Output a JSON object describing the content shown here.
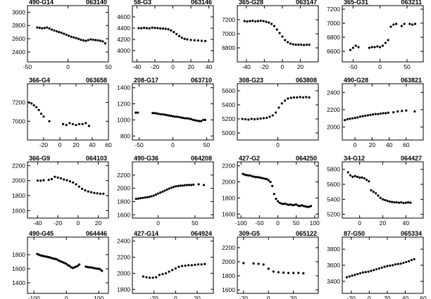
{
  "chart_data": [
    {
      "type": "scatter",
      "title_left": "490-G14",
      "title_right": "063140",
      "xlim": [
        -50,
        50
      ],
      "ylim": [
        2250,
        3100
      ],
      "xticks": [
        -50,
        0,
        50
      ],
      "yticks": [
        2400,
        2600,
        2800,
        3000
      ],
      "x": [
        -38,
        -35,
        -32,
        -29,
        -26,
        -23,
        -20,
        -17,
        -14,
        -11,
        -8,
        -5,
        -2,
        1,
        4,
        7,
        10,
        13,
        16,
        19,
        22,
        25,
        28,
        31,
        34,
        37,
        40,
        43,
        46
      ],
      "y": [
        2770,
        2765,
        2758,
        2762,
        2770,
        2755,
        2738,
        2725,
        2712,
        2700,
        2690,
        2675,
        2660,
        2645,
        2630,
        2620,
        2610,
        2598,
        2585,
        2575,
        2568,
        2580,
        2590,
        2585,
        2580,
        2575,
        2570,
        2560,
        2530
      ]
    },
    {
      "type": "scatter",
      "title_left": "58-G3",
      "title_right": "063146",
      "xlim": [
        -45,
        45
      ],
      "ylim": [
        3800,
        4800
      ],
      "xticks": [
        -40,
        -20,
        0,
        20,
        40
      ],
      "yticks": [
        4000,
        4200,
        4400,
        4600
      ],
      "x": [
        -38,
        -35,
        -32,
        -29,
        -26,
        -23,
        -20,
        -17,
        -14,
        -11,
        -8,
        -5,
        -2,
        1,
        4,
        7,
        10,
        13,
        16,
        20,
        24,
        28,
        32,
        36
      ],
      "y": [
        4400,
        4398,
        4405,
        4400,
        4395,
        4410,
        4405,
        4400,
        4395,
        4392,
        4388,
        4380,
        4360,
        4330,
        4295,
        4260,
        4230,
        4210,
        4200,
        4190,
        4185,
        4180,
        4175,
        4170
      ]
    },
    {
      "type": "scatter",
      "title_left": "365-G28",
      "title_right": "063147",
      "xlim": [
        -50,
        40
      ],
      "ylim": [
        6600,
        7400
      ],
      "xticks": [
        -40,
        -20,
        0,
        20
      ],
      "yticks": [
        6800,
        7000,
        7200
      ],
      "x": [
        -42,
        -39,
        -36,
        -33,
        -30,
        -27,
        -24,
        -21,
        -18,
        -15,
        -12,
        -9,
        -6,
        -3,
        0,
        3,
        6,
        9,
        12,
        15,
        18,
        21,
        24,
        27,
        30
      ],
      "y": [
        7180,
        7175,
        7180,
        7185,
        7175,
        7180,
        7185,
        7180,
        7170,
        7160,
        7140,
        7110,
        7060,
        7010,
        6960,
        6910,
        6880,
        6860,
        6850,
        6845,
        6845,
        6845,
        6840,
        6845,
        6845
      ]
    },
    {
      "type": "scatter",
      "title_left": "365-G31",
      "title_right": "063211",
      "xlim": [
        -70,
        80
      ],
      "ylim": [
        6450,
        7250
      ],
      "xticks": [
        -50,
        0,
        50
      ],
      "yticks": [
        6600,
        6800,
        7000,
        7200
      ],
      "x": [
        -55,
        -50,
        -45,
        -40,
        -20,
        -15,
        -10,
        -5,
        0,
        5,
        10,
        15,
        20,
        25,
        30,
        40,
        45,
        55,
        60,
        65
      ],
      "y": [
        6620,
        6650,
        6680,
        6660,
        6650,
        6660,
        6660,
        6670,
        6660,
        6680,
        6720,
        6760,
        6950,
        6980,
        6990,
        6960,
        6990,
        6990,
        6980,
        6990
      ]
    },
    {
      "type": "scatter",
      "title_left": "366-G4",
      "title_right": "063658",
      "xlim": [
        -40,
        60
      ],
      "ylim": [
        6800,
        7400
      ],
      "xticks": [
        -20,
        0,
        20,
        40,
        60
      ],
      "yticks": [
        7000,
        7200
      ],
      "x": [
        -38,
        -35,
        -32,
        -29,
        -26,
        -23,
        -20,
        -13,
        4,
        8,
        12,
        16,
        20,
        24,
        28,
        32,
        36
      ],
      "y": [
        7200,
        7190,
        7170,
        7150,
        7120,
        7080,
        7050,
        7000,
        6970,
        6960,
        6980,
        6970,
        6960,
        6970,
        6970,
        6980,
        6950
      ]
    },
    {
      "type": "scatter",
      "title_left": "208-G17",
      "title_right": "063710",
      "xlim": [
        -60,
        60
      ],
      "ylim": [
        750,
        1450
      ],
      "xticks": [
        -50,
        0,
        50
      ],
      "yticks": [
        800,
        1000,
        1200,
        1400
      ],
      "x": [
        -55,
        -52,
        -30,
        -27,
        -24,
        -21,
        -18,
        -15,
        -12,
        -9,
        -6,
        -3,
        0,
        3,
        6,
        9,
        12,
        15,
        18,
        21,
        24,
        27,
        30,
        33,
        36,
        39,
        42,
        45,
        48
      ],
      "y": [
        1090,
        1090,
        1085,
        1085,
        1080,
        1075,
        1070,
        1070,
        1065,
        1060,
        1055,
        1050,
        1045,
        1040,
        1040,
        1035,
        1030,
        1025,
        1020,
        1020,
        1015,
        1010,
        1000,
        995,
        990,
        985,
        985,
        1000,
        1000
      ]
    },
    {
      "type": "scatter",
      "title_left": "308-G23",
      "title_right": "063808",
      "xlim": [
        -40,
        40
      ],
      "ylim": [
        4900,
        5700
      ],
      "xticks": [
        0
      ],
      "yticks": [
        5000,
        5200,
        5400,
        5600
      ],
      "x": [
        -35,
        -32,
        -29,
        -26,
        -23,
        -20,
        -17,
        -14,
        -11,
        -8,
        -5,
        -2,
        1,
        4,
        7,
        10,
        13,
        16,
        19,
        22,
        25,
        28,
        31
      ],
      "y": [
        5200,
        5195,
        5190,
        5200,
        5195,
        5200,
        5205,
        5210,
        5215,
        5230,
        5250,
        5290,
        5360,
        5420,
        5460,
        5490,
        5500,
        5505,
        5505,
        5510,
        5505,
        5510,
        5505
      ]
    },
    {
      "type": "scatter",
      "title_left": "490-G28",
      "title_right": "063821",
      "xlim": [
        -15,
        80
      ],
      "ylim": [
        1850,
        2500
      ],
      "xticks": [
        0,
        20,
        40,
        60
      ],
      "yticks": [
        2000,
        2200,
        2400
      ],
      "x": [
        -12,
        -9,
        -6,
        -3,
        0,
        3,
        6,
        9,
        12,
        15,
        18,
        21,
        24,
        27,
        30,
        33,
        36,
        39,
        45,
        50,
        55,
        60,
        70
      ],
      "y": [
        2080,
        2090,
        2095,
        2100,
        2105,
        2110,
        2120,
        2125,
        2130,
        2135,
        2140,
        2145,
        2150,
        2150,
        2155,
        2160,
        2160,
        2165,
        2170,
        2180,
        2185,
        2190,
        2180
      ]
    },
    {
      "type": "scatter",
      "title_left": "366-G9",
      "title_right": "064103",
      "xlim": [
        -50,
        30
      ],
      "ylim": [
        1500,
        2250
      ],
      "xticks": [
        -40,
        -20,
        0,
        20
      ],
      "yticks": [
        1600,
        1800,
        2000,
        2200
      ],
      "x": [
        -40,
        -37,
        -34,
        -29,
        -26,
        -23,
        -20,
        -17,
        -14,
        -11,
        -8,
        -5,
        -2,
        1,
        4,
        7,
        10,
        13,
        16,
        19,
        22,
        25
      ],
      "y": [
        2000,
        1998,
        2005,
        2010,
        2020,
        2050,
        2040,
        2030,
        2015,
        2005,
        1990,
        1975,
        1950,
        1920,
        1890,
        1870,
        1855,
        1845,
        1835,
        1830,
        1825,
        1825
      ]
    },
    {
      "type": "scatter",
      "title_left": "490-G36",
      "title_right": "064208",
      "xlim": [
        -35,
        75
      ],
      "ylim": [
        1550,
        2400
      ],
      "xticks": [
        0,
        50
      ],
      "yticks": [
        1600,
        1800,
        2000,
        2200
      ],
      "x": [
        -30,
        -27,
        -24,
        -21,
        -18,
        -15,
        -12,
        -9,
        -6,
        -3,
        0,
        3,
        6,
        9,
        12,
        15,
        18,
        21,
        24,
        27,
        30,
        33,
        36,
        39,
        42,
        45,
        48,
        55,
        62
      ],
      "y": [
        1840,
        1845,
        1850,
        1855,
        1860,
        1865,
        1870,
        1880,
        1890,
        1905,
        1920,
        1935,
        1950,
        1965,
        1980,
        1995,
        2010,
        2020,
        2030,
        2035,
        2040,
        2040,
        2045,
        2050,
        2050,
        2050,
        2055,
        2060,
        2050
      ]
    },
    {
      "type": "scatter",
      "title_left": "427-G2",
      "title_right": "064250",
      "xlim": [
        -110,
        110
      ],
      "ylim": [
        1550,
        2250
      ],
      "xticks": [
        -100,
        -50,
        0,
        50,
        100
      ],
      "yticks": [
        1600,
        1800,
        2000,
        2200
      ],
      "x": [
        -95,
        -90,
        -85,
        -80,
        -75,
        -70,
        -65,
        -60,
        -55,
        -50,
        -45,
        -40,
        -35,
        -30,
        -25,
        -20,
        -15,
        -10,
        -5,
        0,
        5,
        10,
        15,
        20,
        25,
        30,
        35,
        40,
        45,
        50,
        55,
        60,
        65,
        70,
        75,
        80,
        85,
        90
      ],
      "y": [
        2100,
        2090,
        2085,
        2080,
        2080,
        2070,
        2065,
        2060,
        2060,
        2055,
        2050,
        2045,
        2040,
        2035,
        2020,
        2000,
        1950,
        1850,
        1790,
        1760,
        1740,
        1730,
        1725,
        1730,
        1720,
        1715,
        1720,
        1710,
        1715,
        1720,
        1705,
        1700,
        1710,
        1700,
        1695,
        1690,
        1690,
        1700
      ]
    },
    {
      "type": "scatter",
      "title_left": "34-G12",
      "title_right": "064427",
      "xlim": [
        -15,
        55
      ],
      "ylim": [
        5150,
        5900
      ],
      "xticks": [
        0,
        20,
        40
      ],
      "yticks": [
        5200,
        5400,
        5600,
        5800
      ],
      "x": [
        -10,
        -8,
        -6,
        -4,
        -2,
        0,
        2,
        4,
        6,
        8,
        10,
        12,
        14,
        16,
        18,
        20,
        22,
        24,
        26,
        28,
        30,
        32,
        34,
        36,
        38,
        40,
        42,
        44
      ],
      "y": [
        5760,
        5720,
        5700,
        5710,
        5700,
        5690,
        5690,
        5680,
        5660,
        5640,
        5520,
        5500,
        5480,
        5450,
        5420,
        5400,
        5390,
        5380,
        5370,
        5365,
        5360,
        5360,
        5355,
        5360,
        5350,
        5355,
        5360,
        5355
      ]
    },
    {
      "type": "scatter",
      "title_left": "490-G45",
      "title_right": "064446",
      "xlim": [
        -120,
        130
      ],
      "ylim": [
        1250,
        2050
      ],
      "xticks": [
        -100,
        0,
        100
      ],
      "yticks": [
        1400,
        1600,
        1800
      ],
      "x": [
        -90,
        -85,
        -80,
        -75,
        -70,
        -65,
        -60,
        -55,
        -50,
        -45,
        -40,
        -35,
        -30,
        -25,
        -20,
        -15,
        -10,
        -5,
        0,
        5,
        10,
        15,
        20,
        25,
        30,
        35,
        40,
        60,
        65,
        70,
        75,
        80,
        85,
        90,
        95,
        100,
        105,
        110
      ],
      "y": [
        1810,
        1800,
        1790,
        1785,
        1780,
        1775,
        1770,
        1765,
        1760,
        1750,
        1745,
        1740,
        1735,
        1720,
        1710,
        1700,
        1690,
        1680,
        1670,
        1650,
        1640,
        1620,
        1610,
        1620,
        1630,
        1640,
        1660,
        1630,
        1625,
        1620,
        1620,
        1615,
        1610,
        1605,
        1600,
        1600,
        1590,
        1570
      ]
    },
    {
      "type": "scatter",
      "title_left": "427-G14",
      "title_right": "064924",
      "xlim": [
        -40,
        35
      ],
      "ylim": [
        1750,
        2450
      ],
      "xticks": [
        -20,
        0,
        20
      ],
      "yticks": [
        1800,
        2000,
        2200,
        2400
      ],
      "x": [
        -30,
        -27,
        -24,
        -21,
        -18,
        -15,
        -12,
        -9,
        -6,
        -3,
        0,
        3,
        6,
        9,
        12,
        15,
        18,
        21,
        24,
        27
      ],
      "y": [
        1960,
        1950,
        1945,
        1945,
        1950,
        1980,
        1990,
        2000,
        2020,
        2040,
        2060,
        2080,
        2090,
        2095,
        2100,
        2100,
        2105,
        2110,
        2110,
        2115
      ]
    },
    {
      "type": "scatter",
      "title_left": "309-G5",
      "title_right": "065122",
      "xlim": [
        -25,
        40
      ],
      "ylim": [
        1550,
        2350
      ],
      "xticks": [
        -20,
        0,
        20
      ],
      "yticks": [
        1600,
        1800,
        2000,
        2200
      ],
      "x": [
        -20,
        -12,
        -8,
        -4,
        0,
        4,
        8,
        12,
        16,
        20,
        24,
        28
      ],
      "y": [
        1980,
        1975,
        1970,
        1960,
        1900,
        1860,
        1850,
        1845,
        1840,
        1840,
        1840,
        1835
      ]
    },
    {
      "type": "scatter",
      "title_left": "87-G50",
      "title_right": "065334",
      "xlim": [
        -30,
        60
      ],
      "ylim": [
        3250,
        3950
      ],
      "xticks": [
        -20,
        0,
        20,
        40,
        60
      ],
      "yticks": [
        3400,
        3600,
        3800
      ],
      "x": [
        -25,
        -22,
        -19,
        -16,
        -13,
        -10,
        -7,
        -4,
        -1,
        2,
        5,
        8,
        11,
        14,
        17,
        20,
        23,
        26,
        29,
        32,
        35,
        38,
        41,
        44,
        47,
        50
      ],
      "y": [
        3450,
        3460,
        3470,
        3480,
        3490,
        3500,
        3510,
        3515,
        3520,
        3530,
        3540,
        3550,
        3560,
        3570,
        3580,
        3590,
        3595,
        3600,
        3610,
        3615,
        3620,
        3630,
        3640,
        3650,
        3665,
        3675
      ]
    }
  ]
}
